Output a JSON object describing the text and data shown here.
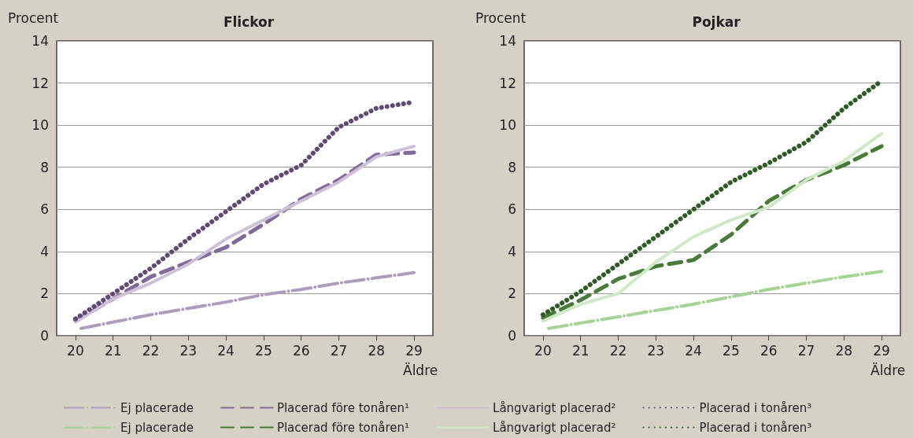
{
  "chart_data": [
    {
      "type": "line",
      "title": "Flickor",
      "ylabel": "Procent",
      "xlabel": "Äldre",
      "xlim": [
        19.5,
        29.5
      ],
      "xticks": [
        20,
        21,
        22,
        23,
        24,
        25,
        26,
        27,
        28,
        29
      ],
      "ylim": [
        0,
        14
      ],
      "yticks": [
        0,
        2,
        4,
        6,
        8,
        10,
        12,
        14
      ],
      "grid": "y",
      "legend": "bottom",
      "marker": "none",
      "series": [
        {
          "name": "Ej placerade",
          "color": "#ad9dbd",
          "line_style": "dashdot",
          "x": [
            20.15,
            22,
            24,
            25,
            26,
            27,
            28,
            29
          ],
          "values": [
            0.35,
            1.0,
            1.6,
            1.95,
            2.2,
            2.5,
            2.75,
            3.0
          ]
        },
        {
          "name": "Placerad före tonåren¹",
          "color": "#7f6a98",
          "line_style": "dashed",
          "x": [
            20,
            21,
            22,
            23,
            24,
            25,
            26,
            27,
            28,
            29
          ],
          "values": [
            0.7,
            1.75,
            2.8,
            3.5,
            4.2,
            5.3,
            6.5,
            7.4,
            8.6,
            8.7
          ]
        },
        {
          "name": "Långvarigt placerad²",
          "color": "#cdc1d8",
          "line_style": "solid",
          "x": [
            20,
            21,
            22,
            23,
            24,
            25,
            26,
            27,
            28,
            29
          ],
          "values": [
            0.65,
            1.75,
            2.5,
            3.4,
            4.6,
            5.5,
            6.4,
            7.3,
            8.5,
            9.0
          ]
        },
        {
          "name": "Placerad i tonåren³",
          "color": "#5f4a74",
          "line_style": "dotted",
          "x": [
            20,
            21,
            22,
            23,
            24,
            25,
            26,
            27,
            28,
            29
          ],
          "values": [
            0.8,
            2.0,
            3.2,
            4.6,
            5.9,
            7.2,
            8.1,
            9.9,
            10.8,
            11.1
          ]
        }
      ]
    },
    {
      "type": "line",
      "title": "Pojkar",
      "ylabel": "Procent",
      "xlabel": "Äldre",
      "xlim": [
        19.5,
        29.5
      ],
      "xticks": [
        20,
        21,
        22,
        23,
        24,
        25,
        26,
        27,
        28,
        29
      ],
      "ylim": [
        0,
        14
      ],
      "yticks": [
        0,
        2,
        4,
        6,
        8,
        10,
        12,
        14
      ],
      "grid": "y",
      "legend": "bottom",
      "marker": "none",
      "series": [
        {
          "name": "Ej placerade",
          "color": "#a6d396",
          "line_style": "dashdot",
          "x": [
            20.15,
            22,
            24,
            25,
            26,
            27,
            28,
            29
          ],
          "values": [
            0.35,
            0.9,
            1.5,
            1.85,
            2.2,
            2.5,
            2.8,
            3.05
          ]
        },
        {
          "name": "Placerad före tonåren¹",
          "color": "#4a7a3a",
          "line_style": "dashed",
          "x": [
            20,
            21,
            22,
            23,
            24,
            25,
            26,
            27,
            28,
            29
          ],
          "values": [
            0.85,
            1.7,
            2.7,
            3.3,
            3.6,
            4.8,
            6.4,
            7.4,
            8.1,
            9.0
          ]
        },
        {
          "name": "Långvarigt placerad²",
          "color": "#cfe8c6",
          "line_style": "solid",
          "x": [
            20,
            21,
            22,
            23,
            24,
            25,
            26,
            27,
            28,
            29
          ],
          "values": [
            0.7,
            1.5,
            2.0,
            3.5,
            4.7,
            5.5,
            6.1,
            7.4,
            8.3,
            9.6
          ]
        },
        {
          "name": "Placerad i tonåren³",
          "color": "#2f5a25",
          "line_style": "dotted",
          "x": [
            20,
            21,
            22,
            23,
            24,
            25,
            26,
            27,
            28,
            29
          ],
          "values": [
            1.0,
            2.1,
            3.4,
            4.7,
            6.0,
            7.3,
            8.2,
            9.2,
            10.8,
            12.1
          ]
        }
      ]
    }
  ]
}
